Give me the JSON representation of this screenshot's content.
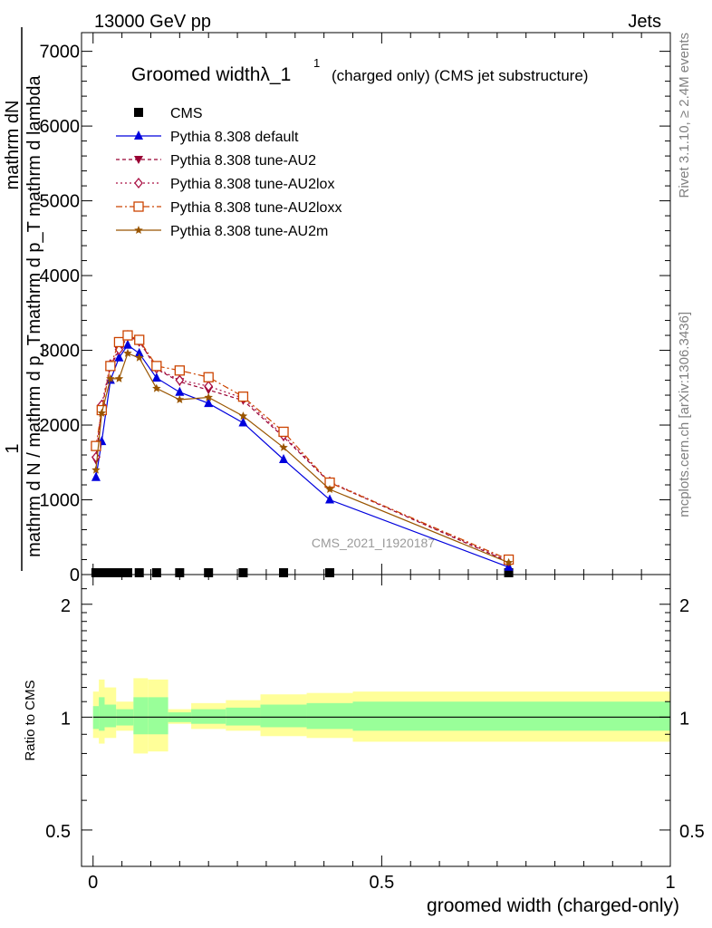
{
  "header": {
    "energy_label": "13000 GeV pp",
    "category_label": "Jets"
  },
  "side_labels": {
    "rivet": "Rivet 3.1.10, ≥ 2.4M events",
    "mcplots": "mcplots.cern.ch [arXiv:1306.3436]"
  },
  "chart_data": [
    {
      "type": "line",
      "title": "Groomed widthλ_1",
      "title_sup": "1",
      "subtitle": "(charged only) (CMS jet substructure)",
      "watermark": "CMS_2021_I1920187",
      "ylabel_num": "mathrm dN",
      "ylabel_den": "mathrm d p_T mathrm d lambda",
      "ylabel_num2": "1",
      "ylabel_den2": "mathrm d N / mathrm d p_T",
      "ylim": [
        0,
        7250
      ],
      "xlim": [
        -0.02,
        1.0
      ],
      "yticks": [
        0,
        1000,
        2000,
        3000,
        4000,
        5000,
        6000,
        7000
      ],
      "ytick_labels": [
        "0",
        "1000",
        "2000",
        "3000",
        "4000",
        "5000",
        "6000",
        "7000"
      ],
      "legend_position": "top-left",
      "x": [
        0.005,
        0.015,
        0.03,
        0.045,
        0.06,
        0.08,
        0.11,
        0.15,
        0.2,
        0.26,
        0.33,
        0.41,
        0.72
      ],
      "series": [
        {
          "name": "CMS",
          "color": "#000000",
          "marker": "square",
          "dash": "",
          "values": [
            0,
            0,
            0,
            0,
            0,
            0,
            0,
            0,
            0,
            0,
            0,
            0,
            0
          ]
        },
        {
          "name": "Pythia 8.308 default",
          "color": "#0000dd",
          "marker": "triangle-up",
          "dash": "",
          "values": [
            1300,
            1780,
            2600,
            2900,
            3070,
            2960,
            2630,
            2440,
            2290,
            2030,
            1540,
            1000,
            100
          ]
        },
        {
          "name": "Pythia 8.308 tune-AU2",
          "color": "#990033",
          "marker": "triangle-down",
          "dash": "4,3",
          "values": [
            1530,
            2230,
            2780,
            3000,
            3180,
            3130,
            2750,
            2580,
            2470,
            2330,
            1840,
            1230,
            170
          ]
        },
        {
          "name": "Pythia 8.308 tune-AU2lox",
          "color": "#aa1144",
          "marker": "diamond",
          "dash": "2,3",
          "values": [
            1570,
            2270,
            2810,
            3010,
            3200,
            3120,
            2760,
            2600,
            2520,
            2360,
            1860,
            1240,
            180
          ]
        },
        {
          "name": "Pythia 8.308 tune-AU2loxx",
          "color": "#cc4400",
          "marker": "square-open",
          "dash": "7,3,2,3",
          "values": [
            1720,
            2200,
            2790,
            3110,
            3200,
            3140,
            2790,
            2730,
            2640,
            2380,
            1910,
            1230,
            200
          ]
        },
        {
          "name": "Pythia 8.308 tune-AU2m",
          "color": "#995500",
          "marker": "star",
          "dash": "",
          "values": [
            1400,
            2160,
            2620,
            2620,
            2960,
            2900,
            2490,
            2340,
            2370,
            2120,
            1700,
            1140,
            160
          ]
        }
      ]
    },
    {
      "type": "area",
      "ylabel": "Ratio to CMS",
      "xlabel": "groomed width (charged-only)",
      "ylim": [
        0.4,
        2.4
      ],
      "yscale": "log",
      "xlim": [
        -0.02,
        1.0
      ],
      "yticks": [
        0.5,
        1,
        2
      ],
      "ytick_labels": [
        "0.5",
        "1",
        "2"
      ],
      "xticks": [
        0,
        0.5,
        1
      ],
      "xtick_labels": [
        "0",
        "0.5",
        "1"
      ],
      "band_colors": {
        "inner": "#99ff99",
        "outer": "#ffff99"
      },
      "bins": [
        {
          "x0": 0.0,
          "x1": 0.01,
          "inner": [
            0.93,
            1.07
          ],
          "outer": [
            0.88,
            1.17
          ]
        },
        {
          "x0": 0.01,
          "x1": 0.02,
          "inner": [
            0.92,
            1.13
          ],
          "outer": [
            0.85,
            1.26
          ]
        },
        {
          "x0": 0.02,
          "x1": 0.04,
          "inner": [
            0.94,
            1.08
          ],
          "outer": [
            0.88,
            1.2
          ]
        },
        {
          "x0": 0.04,
          "x1": 0.07,
          "inner": [
            0.95,
            1.05
          ],
          "outer": [
            0.92,
            1.1
          ]
        },
        {
          "x0": 0.07,
          "x1": 0.095,
          "inner": [
            0.9,
            1.13
          ],
          "outer": [
            0.8,
            1.27
          ]
        },
        {
          "x0": 0.095,
          "x1": 0.13,
          "inner": [
            0.9,
            1.13
          ],
          "outer": [
            0.81,
            1.26
          ]
        },
        {
          "x0": 0.13,
          "x1": 0.17,
          "inner": [
            0.97,
            1.03
          ],
          "outer": [
            0.96,
            1.05
          ]
        },
        {
          "x0": 0.17,
          "x1": 0.23,
          "inner": [
            0.96,
            1.05
          ],
          "outer": [
            0.93,
            1.09
          ]
        },
        {
          "x0": 0.23,
          "x1": 0.29,
          "inner": [
            0.95,
            1.06
          ],
          "outer": [
            0.92,
            1.11
          ]
        },
        {
          "x0": 0.29,
          "x1": 0.37,
          "inner": [
            0.94,
            1.08
          ],
          "outer": [
            0.89,
            1.15
          ]
        },
        {
          "x0": 0.37,
          "x1": 0.45,
          "inner": [
            0.93,
            1.09
          ],
          "outer": [
            0.88,
            1.16
          ]
        },
        {
          "x0": 0.45,
          "x1": 1.0,
          "inner": [
            0.92,
            1.1
          ],
          "outer": [
            0.86,
            1.17
          ]
        }
      ]
    }
  ]
}
